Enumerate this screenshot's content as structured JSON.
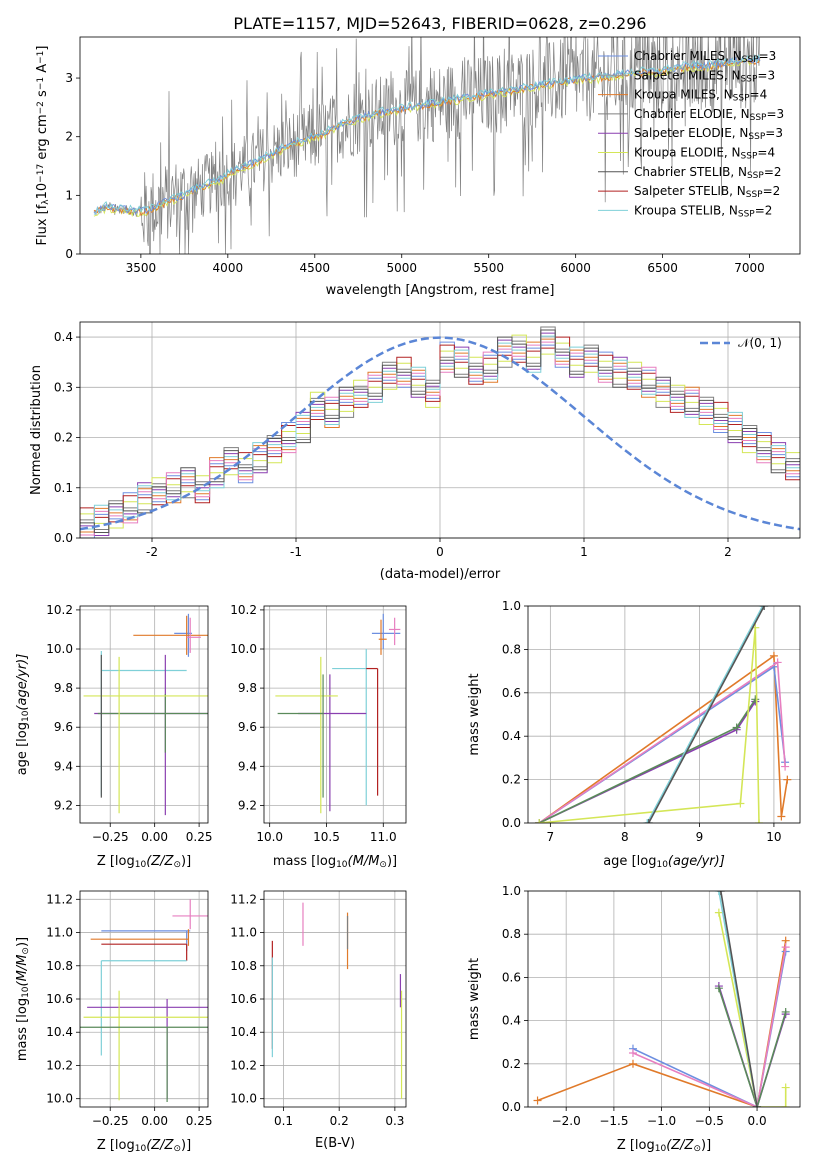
{
  "title": "PLATE=1157, MJD=52643, FIBERID=0628, z=0.296",
  "colors": {
    "chabrier_miles": "#6d8fe0",
    "salpeter_miles": "#9a9a9a",
    "kroupa_miles": "#e07a2a",
    "chabrier_elodie": "#7f7f7f",
    "salpeter_elodie": "#8a3fb0",
    "kroupa_elodie": "#d4e657",
    "chabrier_stelib": "#555555",
    "salpeter_stelib": "#b22222",
    "kroupa_stelib": "#7fd0d8",
    "pink": "#e77fc0",
    "olive": "#5a8a5a",
    "gauss": "#5b86d6"
  },
  "chart_data": [
    {
      "id": "spectrum",
      "type": "line",
      "xlabel": "wavelength [Angstrom, rest frame]",
      "ylabel": "Flux [f",
      "ylabel_sub": "λ",
      "ylabel_mid": "10",
      "ylabel_sup1": "−17",
      "ylabel_rest": " erg cm",
      "ylabel_sup2": "−2",
      "ylabel_s": " s",
      "ylabel_sup3": "−1",
      "ylabel_A": " A",
      "ylabel_sup4": "−1",
      "ylabel_end": "]",
      "xlim": [
        3150,
        7290
      ],
      "ylim": [
        0,
        3.7
      ],
      "xticks": [
        3500,
        4000,
        4500,
        5000,
        5500,
        6000,
        6500,
        7000
      ],
      "yticks": [
        0,
        1,
        2,
        3
      ],
      "legend": [
        {
          "name": "Chabrier MILES, N",
          "sub": "SSP",
          "tail": "=3",
          "color": "#6d8fe0"
        },
        {
          "name": "Salpeter MILES, N",
          "sub": "SSP",
          "tail": "=3",
          "color": "#9a9a9a"
        },
        {
          "name": "Kroupa MILES, N",
          "sub": "SSP",
          "tail": "=4",
          "color": "#e07a2a"
        },
        {
          "name": "Chabrier ELODIE, N",
          "sub": "SSP",
          "tail": "=3",
          "color": "#7f7f7f"
        },
        {
          "name": "Salpeter ELODIE, N",
          "sub": "SSP",
          "tail": "=3",
          "color": "#8a3fb0"
        },
        {
          "name": "Kroupa ELODIE, N",
          "sub": "SSP",
          "tail": "=4",
          "color": "#d4e657"
        },
        {
          "name": "Chabrier STELIB, N",
          "sub": "SSP",
          "tail": "=2",
          "color": "#555555"
        },
        {
          "name": "Salpeter STELIB, N",
          "sub": "SSP",
          "tail": "=2",
          "color": "#b22222"
        },
        {
          "name": "Kroupa STELIB, N",
          "sub": "SSP",
          "tail": "=2",
          "color": "#7fd0d8"
        }
      ],
      "model_curve": {
        "x": [
          3230,
          3300,
          3400,
          3480,
          3550,
          3650,
          3750,
          3850,
          3950,
          4050,
          4150,
          4250,
          4350,
          4450,
          4550,
          4650,
          4750,
          4850,
          4950,
          5050,
          5150,
          5250,
          5350,
          5450,
          5550,
          5650,
          5750,
          5850,
          5950,
          6050,
          6150,
          6250,
          6350,
          6450,
          6550,
          6650,
          6750,
          6850,
          6950,
          7050
        ],
        "y": [
          0.7,
          0.8,
          0.76,
          0.72,
          0.75,
          0.9,
          1.0,
          1.15,
          1.25,
          1.45,
          1.55,
          1.7,
          1.85,
          1.95,
          2.05,
          2.2,
          2.3,
          2.4,
          2.45,
          2.5,
          2.55,
          2.6,
          2.65,
          2.7,
          2.75,
          2.8,
          2.85,
          2.9,
          2.95,
          3.0,
          3.0,
          3.05,
          3.1,
          3.1,
          3.15,
          3.2,
          3.2,
          3.25,
          3.3,
          3.3
        ]
      }
    },
    {
      "id": "residuals",
      "type": "histogram",
      "xlabel": "(data-model)/error",
      "ylabel": "Normed distribution",
      "xlim": [
        -2.5,
        2.5
      ],
      "ylim": [
        0,
        0.43
      ],
      "xticks": [
        -2,
        -1,
        0,
        1,
        2
      ],
      "yticks": [
        0.0,
        0.1,
        0.2,
        0.3,
        0.4
      ],
      "legend": [
        {
          "name": "𝒩(0, 1)",
          "color": "#5b86d6"
        }
      ],
      "bin_width": 0.1,
      "hist": [
        0.03,
        0.035,
        0.05,
        0.06,
        0.08,
        0.09,
        0.1,
        0.11,
        0.1,
        0.13,
        0.15,
        0.14,
        0.16,
        0.18,
        0.2,
        0.22,
        0.26,
        0.25,
        0.27,
        0.29,
        0.3,
        0.32,
        0.33,
        0.31,
        0.29,
        0.36,
        0.35,
        0.33,
        0.34,
        0.37,
        0.38,
        0.36,
        0.39,
        0.37,
        0.35,
        0.36,
        0.34,
        0.33,
        0.32,
        0.31,
        0.29,
        0.28,
        0.27,
        0.25,
        0.24,
        0.22,
        0.2,
        0.18,
        0.16,
        0.14
      ]
    },
    {
      "id": "age_vs_Z",
      "type": "scatter",
      "xlabel": "Z [log",
      "xlabel_sub": "10",
      "xlabel_rest": "(Z/Z",
      "xlabel_sub2": "⊙",
      "xlabel_end": ")]",
      "ylabel": "age  [log",
      "ylabel_sub": "10",
      "ylabel_rest": "(age/yr)]",
      "xlim": [
        -0.42,
        0.3
      ],
      "ylim": [
        9.11,
        10.22
      ],
      "xticks": [
        -0.25,
        0.0,
        0.25
      ],
      "xtick_labels": [
        "−0.25",
        "0.00",
        "0.25"
      ],
      "yticks": [
        9.2,
        9.4,
        9.6,
        9.8,
        10.0,
        10.2
      ],
      "errorbars": [
        {
          "x": 0.19,
          "y": 10.08,
          "xerr": [
            0.08,
            0.02
          ],
          "yerr": [
            0.12,
            0.1
          ],
          "color": "#6d8fe0"
        },
        {
          "x": 0.18,
          "y": 10.07,
          "xerr": [
            0.3,
            0.12
          ],
          "yerr": [
            0.1,
            0.1
          ],
          "color": "#e07a2a"
        },
        {
          "x": 0.2,
          "y": 10.06,
          "xerr": [
            0.02,
            0.06
          ],
          "yerr": [
            0.08,
            0.1
          ],
          "color": "#e77fc0"
        },
        {
          "x": -0.3,
          "y": 9.89,
          "xerr": [
            0.0,
            0.48
          ],
          "yerr": [
            0.64,
            0.1
          ],
          "color": "#7fd0d8"
        },
        {
          "x": 0.06,
          "y": 9.67,
          "xerr": [
            0.4,
            0.24
          ],
          "yerr": [
            0.52,
            0.3
          ],
          "color": "#8a3fb0"
        },
        {
          "x": 0.06,
          "y": 9.67,
          "xerr": [
            0.38,
            0.24
          ],
          "yerr": [
            0.2,
            0.1
          ],
          "color": "#5a8a5a"
        },
        {
          "x": -0.2,
          "y": 9.76,
          "xerr": [
            0.2,
            0.5
          ],
          "yerr": [
            0.6,
            0.2
          ],
          "color": "#d4e657"
        },
        {
          "x": -0.3,
          "y": 9.67,
          "xerr": [
            0.0,
            0.0
          ],
          "yerr": [
            0.43,
            0.3
          ],
          "color": "#555555"
        }
      ]
    },
    {
      "id": "age_vs_mass",
      "type": "scatter",
      "xlabel": "mass [log",
      "xlabel_sub": "10",
      "xlabel_rest": "(M/M",
      "xlabel_sub2": "⊙",
      "xlabel_end": ")]",
      "xlim": [
        9.95,
        11.2
      ],
      "ylim": [
        9.11,
        10.22
      ],
      "xticks": [
        10.0,
        10.5,
        11.0
      ],
      "xtick_labels": [
        "10.0",
        "10.5",
        "11.0"
      ],
      "yticks": [
        9.2,
        9.4,
        9.6,
        9.8,
        10.0,
        10.2
      ],
      "errorbars": [
        {
          "x": 11.0,
          "y": 10.08,
          "xerr": [
            0.1,
            0.15
          ],
          "yerr": [
            0.08,
            0.1
          ],
          "color": "#6d8fe0"
        },
        {
          "x": 10.98,
          "y": 10.05,
          "xerr": [
            0.02,
            0.05
          ],
          "yerr": [
            0.08,
            0.1
          ],
          "color": "#e07a2a"
        },
        {
          "x": 11.1,
          "y": 10.1,
          "xerr": [
            0.05,
            0.05
          ],
          "yerr": [
            0.08,
            0.06
          ],
          "color": "#e77fc0"
        },
        {
          "x": 10.85,
          "y": 9.9,
          "xerr": [
            0.3,
            0.0
          ],
          "yerr": [
            0.7,
            0.1
          ],
          "color": "#7fd0d8"
        },
        {
          "x": 10.95,
          "y": 9.9,
          "xerr": [
            0.1,
            0.0
          ],
          "yerr": [
            0.65,
            0.0
          ],
          "color": "#b22222"
        },
        {
          "x": 10.53,
          "y": 9.67,
          "xerr": [
            0.28,
            0.32
          ],
          "yerr": [
            0.5,
            0.2
          ],
          "color": "#8a3fb0"
        },
        {
          "x": 10.45,
          "y": 9.76,
          "xerr": [
            0.4,
            0.15
          ],
          "yerr": [
            0.6,
            0.2
          ],
          "color": "#d4e657"
        },
        {
          "x": 10.47,
          "y": 9.67,
          "xerr": [
            0.4,
            0.0
          ],
          "yerr": [
            0.43,
            0.2
          ],
          "color": "#5a8a5a"
        }
      ]
    },
    {
      "id": "weight_vs_age",
      "type": "line",
      "xlabel": "age  [log",
      "xlabel_sub": "10",
      "xlabel_rest": "(age/yr)]",
      "ylabel": "mass weight",
      "xlim": [
        6.7,
        10.35
      ],
      "ylim": [
        0,
        1.0
      ],
      "xticks": [
        7,
        8,
        9,
        10
      ],
      "yticks": [
        0.0,
        0.2,
        0.4,
        0.6,
        0.8,
        1.0
      ],
      "series": [
        {
          "color": "#e07a2a",
          "x": [
            6.85,
            10.0,
            10.1,
            10.18
          ],
          "y": [
            0.0,
            0.77,
            0.03,
            0.2
          ]
        },
        {
          "color": "#6d8fe0",
          "x": [
            6.85,
            10.0,
            10.15
          ],
          "y": [
            0.0,
            0.72,
            0.28
          ]
        },
        {
          "color": "#e77fc0",
          "x": [
            6.85,
            10.05,
            10.15
          ],
          "y": [
            0.0,
            0.74,
            0.26
          ]
        },
        {
          "color": "#8a3fb0",
          "x": [
            6.85,
            9.5,
            9.75
          ],
          "y": [
            0.0,
            0.43,
            0.56
          ]
        },
        {
          "color": "#5a8a5a",
          "x": [
            6.85,
            9.5,
            9.75
          ],
          "y": [
            0.0,
            0.44,
            0.57
          ]
        },
        {
          "color": "#d4e657",
          "x": [
            6.85,
            9.55,
            9.75,
            9.8
          ],
          "y": [
            0.0,
            0.09,
            0.9,
            0.0
          ]
        },
        {
          "color": "#7fd0d8",
          "x": [
            8.3,
            9.85
          ],
          "y": [
            0.0,
            1.0
          ]
        },
        {
          "color": "#555555",
          "x": [
            8.32,
            9.87
          ],
          "y": [
            0.0,
            1.0
          ]
        }
      ]
    },
    {
      "id": "mass_vs_Z",
      "type": "scatter",
      "xlabel": "Z [log",
      "xlabel_sub": "10",
      "xlabel_rest": "(Z/Z",
      "xlabel_sub2": "⊙",
      "xlabel_end": ")]",
      "ylabel": "mass [log",
      "ylabel_sub": "10",
      "ylabel_rest": "(M/M",
      "ylabel_sub2": "⊙",
      "ylabel_end": ")]",
      "xlim": [
        -0.42,
        0.3
      ],
      "ylim": [
        9.95,
        11.25
      ],
      "xticks": [
        -0.25,
        0.0,
        0.25
      ],
      "xtick_labels": [
        "−0.25",
        "0.00",
        "0.25"
      ],
      "yticks": [
        10.0,
        10.2,
        10.4,
        10.6,
        10.8,
        11.0,
        11.2
      ],
      "errorbars": [
        {
          "x": 0.18,
          "y": 11.01,
          "xerr": [
            0.48,
            0.02
          ],
          "yerr": [
            0.12,
            0.0
          ],
          "color": "#6d8fe0"
        },
        {
          "x": 0.2,
          "y": 11.1,
          "xerr": [
            0.1,
            0.1
          ],
          "yerr": [
            0.08,
            0.1
          ],
          "color": "#e77fc0"
        },
        {
          "x": 0.19,
          "y": 10.96,
          "xerr": [
            0.55,
            0.0
          ],
          "yerr": [
            0.04,
            0.06
          ],
          "color": "#e07a2a"
        },
        {
          "x": 0.18,
          "y": 10.93,
          "xerr": [
            0.48,
            0.0
          ],
          "yerr": [
            0.1,
            0.0
          ],
          "color": "#b22222"
        },
        {
          "x": -0.3,
          "y": 10.83,
          "xerr": [
            0.0,
            0.48
          ],
          "yerr": [
            0.57,
            0.0
          ],
          "color": "#7fd0d8"
        },
        {
          "x": 0.07,
          "y": 10.55,
          "xerr": [
            0.45,
            0.23
          ],
          "yerr": [
            0.55,
            0.05
          ],
          "color": "#8a3fb0"
        },
        {
          "x": -0.2,
          "y": 10.49,
          "xerr": [
            0.2,
            0.5
          ],
          "yerr": [
            0.5,
            0.16
          ],
          "color": "#d4e657"
        },
        {
          "x": 0.07,
          "y": 10.43,
          "xerr": [
            0.5,
            0.23
          ],
          "yerr": [
            0.45,
            0.0
          ],
          "color": "#5a8a5a"
        }
      ]
    },
    {
      "id": "mass_vs_ebv",
      "type": "scatter",
      "xlabel": "E(B-V)",
      "xlim": [
        0.065,
        0.32
      ],
      "ylim": [
        9.95,
        11.25
      ],
      "xticks": [
        0.1,
        0.2,
        0.3
      ],
      "xtick_labels": [
        "0.1",
        "0.2",
        "0.3"
      ],
      "yticks": [
        10.0,
        10.2,
        10.4,
        10.6,
        10.8,
        11.0,
        11.2
      ],
      "vbars": [
        {
          "x": 0.08,
          "y0": 10.3,
          "y1": 10.95,
          "color": "#b22222"
        },
        {
          "x": 0.08,
          "y0": 10.25,
          "y1": 10.85,
          "color": "#7fd0d8"
        },
        {
          "x": 0.135,
          "y0": 10.92,
          "y1": 11.18,
          "color": "#e77fc0"
        },
        {
          "x": 0.215,
          "y0": 10.78,
          "y1": 11.12,
          "color": "#e07a2a"
        },
        {
          "x": 0.215,
          "y0": 10.9,
          "y1": 11.1,
          "color": "#7f7f7f"
        },
        {
          "x": 0.31,
          "y0": 10.55,
          "y1": 10.75,
          "color": "#8a3fb0"
        },
        {
          "x": 0.312,
          "y0": 10.0,
          "y1": 10.65,
          "color": "#d4e657"
        }
      ]
    },
    {
      "id": "weight_vs_Z",
      "type": "line",
      "xlabel": "Z [log",
      "xlabel_sub": "10",
      "xlabel_rest": "(Z/Z",
      "xlabel_sub2": "⊙",
      "xlabel_end": ")]",
      "ylabel": "mass weight",
      "xlim": [
        -2.4,
        0.45
      ],
      "ylim": [
        0,
        1.0
      ],
      "xticks": [
        -2.0,
        -1.5,
        -1.0,
        -0.5,
        0.0
      ],
      "xtick_labels": [
        "−2.0",
        "−1.5",
        "−1.0",
        "−0.5",
        "0.0"
      ],
      "yticks": [
        0.0,
        0.2,
        0.4,
        0.6,
        0.8,
        1.0
      ],
      "series": [
        {
          "color": "#e07a2a",
          "x": [
            -2.3,
            -1.3,
            0.0,
            0.3
          ],
          "y": [
            0.03,
            0.2,
            0.0,
            0.77
          ]
        },
        {
          "color": "#6d8fe0",
          "x": [
            -1.3,
            0.0,
            0.3
          ],
          "y": [
            0.27,
            0.0,
            0.72
          ]
        },
        {
          "color": "#e77fc0",
          "x": [
            -1.3,
            0.0,
            0.3
          ],
          "y": [
            0.25,
            0.0,
            0.74
          ]
        },
        {
          "color": "#8a3fb0",
          "x": [
            -0.4,
            0.0,
            0.3
          ],
          "y": [
            0.56,
            0.0,
            0.43
          ]
        },
        {
          "color": "#5a8a5a",
          "x": [
            -0.4,
            0.0,
            0.3
          ],
          "y": [
            0.55,
            0.0,
            0.44
          ]
        },
        {
          "color": "#d4e657",
          "x": [
            -0.4,
            0.0,
            0.3,
            0.3
          ],
          "y": [
            0.9,
            0.0,
            0.0,
            0.09
          ]
        },
        {
          "color": "#7fd0d8",
          "x": [
            -0.4,
            0.0
          ],
          "y": [
            1.0,
            0.0
          ]
        },
        {
          "color": "#555555",
          "x": [
            -0.38,
            0.0
          ],
          "y": [
            1.0,
            0.0
          ]
        }
      ]
    }
  ]
}
